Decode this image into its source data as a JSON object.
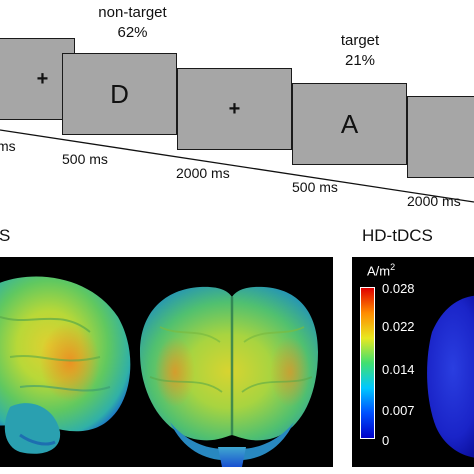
{
  "paradigm": {
    "screens": [
      {
        "stimulus": "+",
        "kind": "fixation"
      },
      {
        "stimulus": "D",
        "kind": "letter"
      },
      {
        "stimulus": "+",
        "kind": "fixation"
      },
      {
        "stimulus": "A",
        "kind": "letter"
      },
      {
        "stimulus": "+",
        "kind": "fixation"
      }
    ],
    "timings": [
      "ms",
      "500 ms",
      "2000 ms",
      "500 ms",
      "2000 ms"
    ],
    "nontarget": {
      "label": "non-target",
      "percent": "62%"
    },
    "target": {
      "label": "target",
      "percent": "21%"
    }
  },
  "sections": {
    "left_title": "S",
    "right_title": "HD-tDCS"
  },
  "colorbar": {
    "unit": "A/m",
    "unit_exp": "2",
    "ticks": [
      "0.028",
      "0.022",
      "0.014",
      "0.007",
      "0"
    ],
    "tick_values": [
      0.028,
      0.022,
      0.014,
      0.007,
      0
    ],
    "range": [
      0,
      0.028
    ],
    "colors": [
      "#0000c8",
      "#0050ff",
      "#00c8ff",
      "#40e070",
      "#e8e820",
      "#ff8c00",
      "#e00000"
    ]
  }
}
